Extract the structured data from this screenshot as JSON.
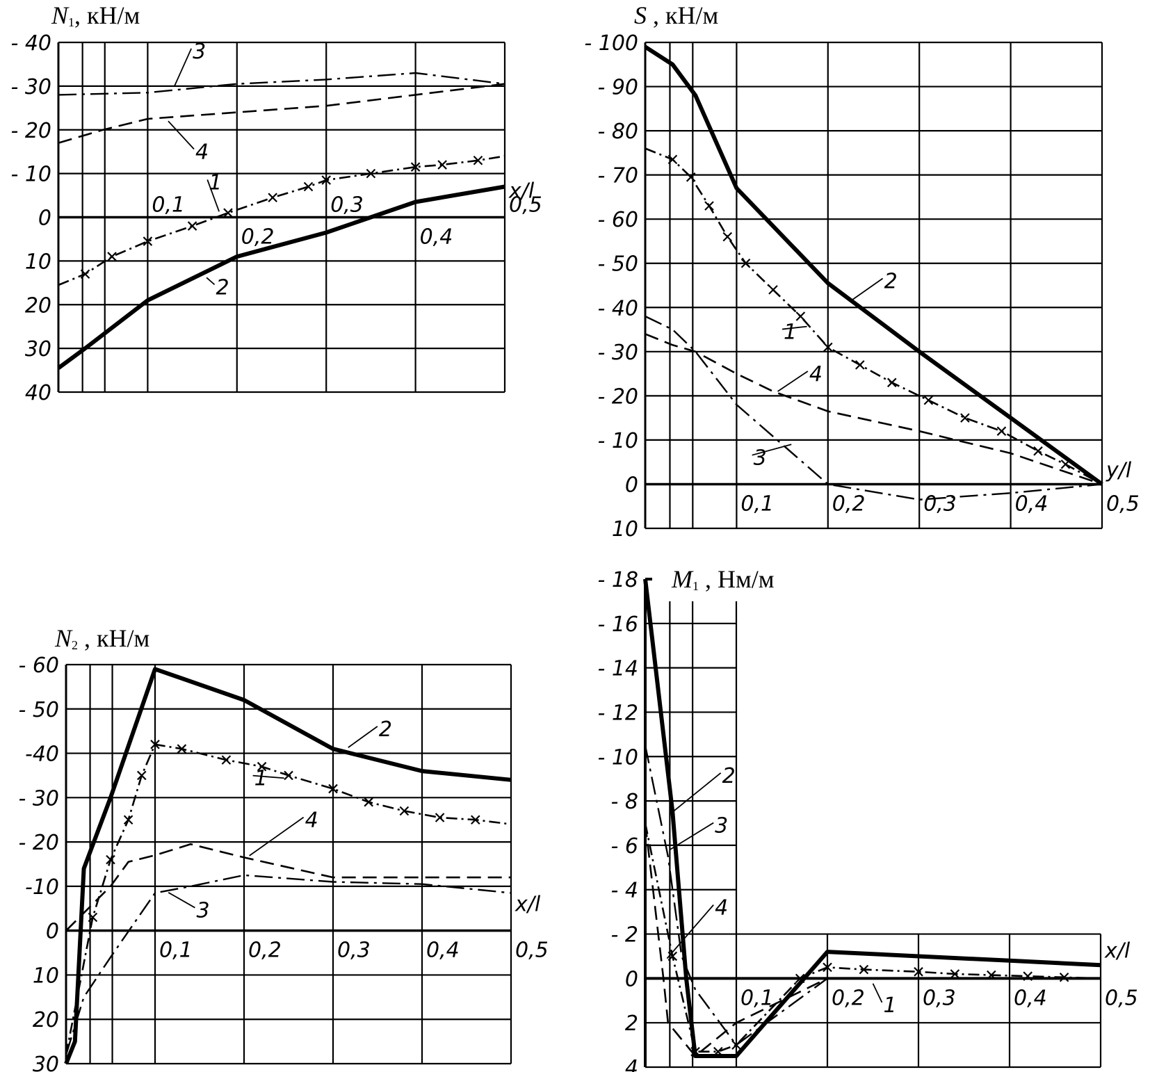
{
  "chart_data": [
    {
      "type": "line",
      "title": "N₁ , кН/м",
      "title_symbol": "N",
      "title_sub": "1",
      "title_unit": ", кН/м",
      "xlabel": "x/l",
      "ylim": [
        -40,
        40
      ],
      "xlim": [
        0,
        0.5
      ],
      "grid": true,
      "yticks": [
        -40,
        -30,
        -20,
        -10,
        0,
        10,
        20,
        30,
        40
      ],
      "ytick_labels": [
        "- 40",
        "- 30",
        "- 20",
        "- 10",
        "0",
        "10",
        "20",
        "30",
        "40"
      ],
      "xticks": [
        0.1,
        0.2,
        0.3,
        0.4,
        0.5
      ],
      "xtick_labels": [
        "0,1",
        "0,2",
        "0,3",
        "0,4",
        "0,5"
      ],
      "series": [
        {
          "name": "1",
          "x": [
            0,
            0.03,
            0.06,
            0.1,
            0.15,
            0.19,
            0.24,
            0.28,
            0.3,
            0.35,
            0.4,
            0.43,
            0.47,
            0.5
          ],
          "y": [
            15.5,
            13,
            9,
            5.5,
            2,
            -1,
            -4.5,
            -7,
            -8.5,
            -10,
            -11.5,
            -12,
            -13,
            -14
          ]
        },
        {
          "name": "2",
          "x": [
            0,
            0.03,
            0.1,
            0.2,
            0.3,
            0.35,
            0.4,
            0.5
          ],
          "y": [
            34.5,
            30,
            19,
            9,
            3.5,
            0,
            -3.5,
            -7
          ]
        },
        {
          "name": "3",
          "x": [
            0,
            0.1,
            0.2,
            0.3,
            0.4,
            0.5
          ],
          "y": [
            -28,
            -28.5,
            -30.5,
            -31.5,
            -33,
            -30.5
          ]
        },
        {
          "name": "4",
          "x": [
            0,
            0.05,
            0.1,
            0.2,
            0.3,
            0.4,
            0.5
          ],
          "y": [
            -17,
            -20,
            -22.5,
            -24,
            -25.5,
            -28,
            -30.5
          ]
        }
      ],
      "annotations": [
        {
          "text": "3",
          "x": 0.13,
          "y": -30,
          "tx": 0.152,
          "ty": -37
        },
        {
          "text": "4",
          "x": 0.123,
          "y": -22,
          "tx": 0.155,
          "ty": -14
        },
        {
          "text": "1",
          "x": 0.18,
          "y": -1.3,
          "tx": 0.17,
          "ty": -7
        },
        {
          "text": "2",
          "x": 0.166,
          "y": 13.8,
          "tx": 0.178,
          "ty": 17
        }
      ]
    },
    {
      "type": "line",
      "title": "S , кН/м",
      "title_symbol": "S",
      "title_sub": "",
      "title_unit": " , кН/м",
      "xlabel": "y/l",
      "ylim": [
        -100,
        10
      ],
      "xlim": [
        0,
        0.5
      ],
      "grid": true,
      "yticks": [
        -100,
        -90,
        -80,
        -70,
        -60,
        -50,
        -40,
        -30,
        -20,
        -10,
        0,
        10
      ],
      "ytick_labels": [
        "- 100",
        "- 90",
        "- 80",
        "- 70",
        "- 60",
        "- 50",
        "- 40",
        "- 30",
        "- 20",
        "- 10",
        "0",
        "10"
      ],
      "xticks": [
        0.1,
        0.2,
        0.3,
        0.4,
        0.5
      ],
      "xtick_labels": [
        "0,1",
        "0,2",
        "0,3",
        "0,4",
        "0,5"
      ],
      "series": [
        {
          "name": "1",
          "x": [
            0,
            0.03,
            0.05,
            0.07,
            0.09,
            0.11,
            0.14,
            0.17,
            0.2,
            0.235,
            0.27,
            0.31,
            0.35,
            0.39,
            0.43,
            0.46,
            0.5
          ],
          "y": [
            -76,
            -73.5,
            -69.5,
            -63,
            -56,
            -50,
            -44,
            -38,
            -31,
            -27,
            -23,
            -19,
            -15,
            -12,
            -7.5,
            -4.5,
            0
          ]
        },
        {
          "name": "2",
          "x": [
            0,
            0.03,
            0.055,
            0.1,
            0.2,
            0.3,
            0.4,
            0.5
          ],
          "y": [
            -99,
            -95,
            -88,
            -67,
            -45.5,
            -30,
            -15,
            0
          ]
        },
        {
          "name": "3",
          "x": [
            0,
            0.03,
            0.055,
            0.1,
            0.2,
            0.3,
            0.4,
            0.5
          ],
          "y": [
            -38,
            -35,
            -30,
            -18,
            0,
            3.5,
            2,
            0
          ]
        },
        {
          "name": "4",
          "x": [
            0,
            0.03,
            0.055,
            0.1,
            0.14,
            0.2,
            0.3,
            0.4,
            0.5
          ],
          "y": [
            -34,
            -31.5,
            -30,
            -25,
            -21,
            -16.5,
            -12,
            -7,
            0
          ]
        }
      ],
      "annotations": [
        {
          "text": "2",
          "x": 0.225,
          "y": -41.5,
          "tx": 0.263,
          "ty": -45
        },
        {
          "text": "1",
          "x": 0.177,
          "y": -35.7,
          "tx": 0.153,
          "ty": -33.5
        },
        {
          "text": "4",
          "x": 0.145,
          "y": -21,
          "tx": 0.181,
          "ty": -24
        },
        {
          "text": "3",
          "x": 0.16,
          "y": -9,
          "tx": 0.12,
          "ty": -5
        }
      ]
    },
    {
      "type": "line",
      "title": "N₂ , кН/м",
      "title_symbol": "N",
      "title_sub": "2",
      "title_unit": " , кН/м",
      "xlabel": "x/l",
      "ylim": [
        -60,
        30
      ],
      "xlim": [
        0,
        0.5
      ],
      "grid": true,
      "yticks": [
        -60,
        -50,
        -40,
        -30,
        -20,
        -10,
        0,
        10,
        20,
        30
      ],
      "ytick_labels": [
        "- 60",
        "- 50",
        "-40",
        "- 30",
        "- 20",
        "-10",
        "0",
        "10",
        "20",
        "30"
      ],
      "xticks": [
        0.1,
        0.2,
        0.3,
        0.4,
        0.5
      ],
      "xtick_labels": [
        "0,1",
        "0,2",
        "0,3",
        "0,4",
        "0,5"
      ],
      "series": [
        {
          "name": "1",
          "x": [
            0,
            0.03,
            0.05,
            0.07,
            0.085,
            0.1,
            0.13,
            0.18,
            0.22,
            0.25,
            0.3,
            0.34,
            0.38,
            0.42,
            0.46,
            0.5
          ],
          "y": [
            28,
            -3,
            -16,
            -25,
            -35,
            -42,
            -41,
            -38.5,
            -37,
            -35,
            -32,
            -29,
            -27,
            -25.5,
            -25,
            -24
          ]
        },
        {
          "name": "2",
          "x": [
            0,
            0.01,
            0.02,
            0.05,
            0.1,
            0.2,
            0.3,
            0.4,
            0.5
          ],
          "y": [
            30,
            25,
            -14,
            -30,
            -59,
            -52,
            -41,
            -36,
            -34
          ]
        },
        {
          "name": "3",
          "x": [
            0,
            0.02,
            0.05,
            0.1,
            0.14,
            0.2,
            0.3,
            0.4,
            0.5
          ],
          "y": [
            28,
            15,
            6,
            -8.5,
            -10,
            -12.5,
            -11,
            -10.5,
            -8.5
          ]
        },
        {
          "name": "4",
          "x": [
            0,
            0.02,
            0.05,
            0.07,
            0.1,
            0.14,
            0.2,
            0.3,
            0.4,
            0.5
          ],
          "y": [
            0,
            -4,
            -10,
            -15.5,
            -17,
            -19.5,
            -16.5,
            -12,
            -12,
            -12
          ]
        }
      ],
      "annotations": [
        {
          "text": "2",
          "x": 0.317,
          "y": -41.3,
          "tx": 0.353,
          "ty": -44.5
        },
        {
          "text": "1",
          "x": 0.245,
          "y": -34.4,
          "tx": 0.213,
          "ty": -33.4
        },
        {
          "text": "4",
          "x": 0.206,
          "y": -16.9,
          "tx": 0.27,
          "ty": -24
        },
        {
          "text": "3",
          "x": 0.115,
          "y": -8.6,
          "tx": 0.148,
          "ty": -3.6
        }
      ]
    },
    {
      "type": "line",
      "title": "M₁ , Нм/м",
      "title_symbol": "M",
      "title_sub": "1",
      "title_unit": " , Нм/м",
      "xlabel": "x/l",
      "ylim": [
        -18,
        4
      ],
      "xlim": [
        0,
        0.5
      ],
      "grid": true,
      "yticks": [
        -18,
        -16,
        -14,
        -12,
        -10,
        -8,
        -6,
        -4,
        -2,
        0,
        2,
        4
      ],
      "ytick_labels": [
        "- 18",
        "- 16",
        "- 14",
        "- 12",
        "- 10",
        "- 8",
        "- 6",
        "- 4",
        "- 2",
        "0",
        "2",
        "4"
      ],
      "xticks": [
        0.1,
        0.2,
        0.3,
        0.4,
        0.5
      ],
      "xtick_labels": [
        "0,1",
        "0,2",
        "0,3",
        "0,4",
        "0,5"
      ],
      "series": [
        {
          "name": "1",
          "x": [
            0,
            0.03,
            0.055,
            0.08,
            0.1,
            0.17,
            0.2,
            0.24,
            0.3,
            0.34,
            0.38,
            0.42,
            0.46,
            0.5
          ],
          "y": [
            -7,
            -1,
            3.3,
            3.3,
            3,
            0,
            -0.5,
            -0.4,
            -0.3,
            -0.2,
            -0.15,
            -0.1,
            -0.05,
            0
          ]
        },
        {
          "name": "2",
          "x": [
            0,
            0.03,
            0.045,
            0.055,
            0.1,
            0.2,
            0.3,
            0.4,
            0.5
          ],
          "y": [
            -18,
            -7.5,
            0,
            3.5,
            3.5,
            -1.2,
            -1.0,
            -0.8,
            -0.6
          ]
        },
        {
          "name": "3",
          "x": [
            0,
            0.025,
            0.04,
            0.055,
            0.1,
            0.2
          ],
          "y": [
            -10.5,
            -5.5,
            -1,
            0.5,
            3,
            0
          ]
        },
        {
          "name": "4",
          "x": [
            0,
            0.02,
            0.025,
            0.055,
            0.1,
            0.2
          ],
          "y": [
            -7,
            0,
            2,
            3.5,
            2,
            0
          ]
        }
      ],
      "annotations": [
        {
          "text": "2",
          "x": 0.03,
          "y": -7.5,
          "tx": 0.086,
          "ty": -8.95
        },
        {
          "text": "3",
          "x": 0.027,
          "y": -5.8,
          "tx": 0.078,
          "ty": -6.7
        },
        {
          "text": "4",
          "x": 0.024,
          "y": -0.9,
          "tx": 0.078,
          "ty": -3
        },
        {
          "text": "1",
          "x": 0.25,
          "y": 0.23,
          "tx": 0.263,
          "ty": 1.4
        }
      ]
    }
  ]
}
